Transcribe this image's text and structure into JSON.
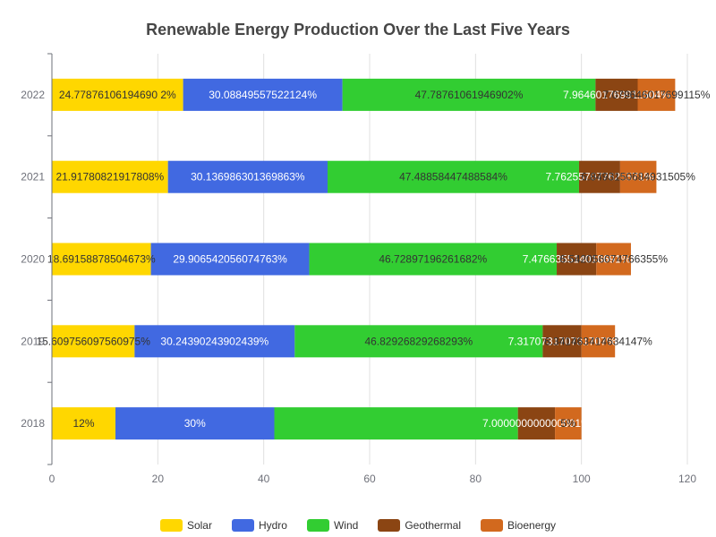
{
  "chart_data": {
    "type": "bar",
    "orientation": "horizontal",
    "stacked": true,
    "title": "Renewable Energy Production Over the Last Five Years",
    "categories": [
      "2018",
      "2019",
      "2020",
      "2021",
      "2022"
    ],
    "xlim": [
      0,
      120
    ],
    "x_ticks": [
      0,
      20,
      40,
      60,
      80,
      100,
      120
    ],
    "grid": true,
    "legend_position": "bottom",
    "series": [
      {
        "name": "Solar",
        "color": "#FFD700",
        "values": [
          12,
          15.609756097560975,
          18.69158878504673,
          21.91780821917808,
          24.7787610619469
        ],
        "labels": [
          "12%",
          "15.609756097560975%",
          "18.69158878504673%",
          "21.91780821917808%",
          "24.77876106194690 2%"
        ]
      },
      {
        "name": "Hydro",
        "color": "#4169E1",
        "values": [
          30,
          30.24390243902439,
          29.906542056074763,
          30.136986301369863,
          30.08849557522124
        ],
        "labels": [
          "30%",
          "30.24390243902439%",
          "29.906542056074763%",
          "30.136986301369863%",
          "30.08849557522124%"
        ]
      },
      {
        "name": "Wind",
        "color": "#32CD32",
        "values": [
          46,
          46.82926829268293,
          46.72897196261682,
          47.48858447488584,
          47.78761061946902
        ],
        "labels": [
          "",
          "46.82926829268293%",
          "46.72897196261682%",
          "47.48858447488584%",
          "47.78761061946902%"
        ]
      },
      {
        "name": "Geothermal",
        "color": "#8B4513",
        "values": [
          7.000000000000001,
          7.317073170731707,
          7.476635514018691,
          7.762557077625571,
          7.964601769911504
        ],
        "labels": [
          "7.000000000000001%",
          "7.317073170731707%",
          "7.476635514018691%",
          "7.762557077625571%",
          "7.964601769911504%"
        ]
      },
      {
        "name": "Bioenergy",
        "color": "#D2691E",
        "values": [
          5,
          6.341463414634147,
          6.542056074766355,
          6.8493150684931505,
          7.079646017699115
        ],
        "labels": [
          "5%",
          "6.341463414634147%",
          "6.542056074766355%",
          "6.8493150684931505%",
          "7.079646017699115%"
        ]
      }
    ]
  }
}
